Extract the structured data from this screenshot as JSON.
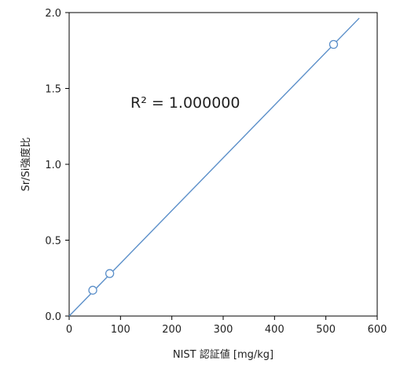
{
  "chart_data": {
    "type": "scatter",
    "title": "",
    "xlabel": "NIST 認証値 [mg/kg]",
    "ylabel": "Sr/Si強度比",
    "xlim": [
      0,
      600
    ],
    "ylim": [
      0.0,
      2.0
    ],
    "x_ticks": [
      0,
      100,
      200,
      300,
      400,
      500,
      600
    ],
    "y_ticks": [
      0.0,
      0.5,
      1.0,
      1.5,
      2.0
    ],
    "x_tick_labels": [
      "0",
      "100",
      "200",
      "300",
      "400",
      "500",
      "600"
    ],
    "y_tick_labels": [
      "0.0",
      "0.5",
      "1.0",
      "1.5",
      "2.0"
    ],
    "grid": false,
    "series": [
      {
        "points": [
          {
            "x": 46,
            "y": 0.17
          },
          {
            "x": 79,
            "y": 0.28
          },
          {
            "x": 515,
            "y": 1.79
          }
        ],
        "marker": "open-circle",
        "color": "#5b8fc9"
      }
    ],
    "trendline": {
      "type": "linear",
      "x_range": [
        0,
        565
      ],
      "slope": 0.003475,
      "intercept": 0.0,
      "color": "#5b8fc9"
    },
    "annotation": "R² = 1.000000"
  }
}
